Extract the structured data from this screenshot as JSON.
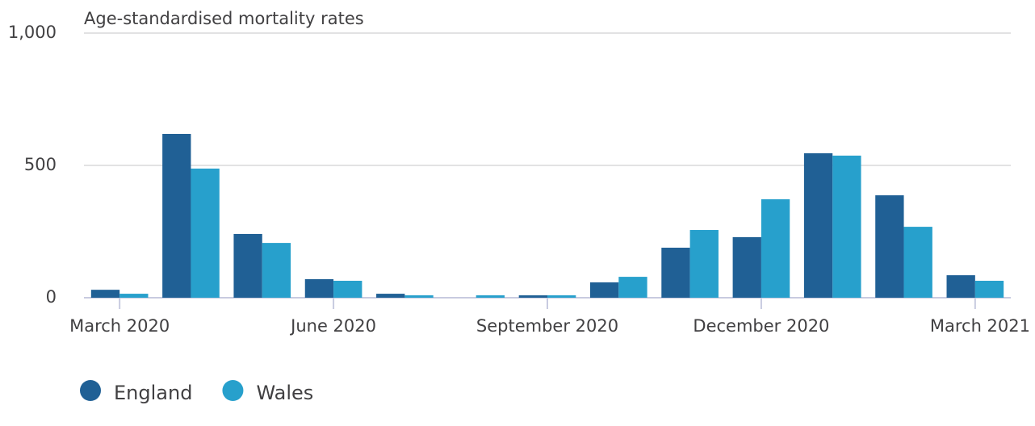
{
  "chart_data": {
    "type": "bar",
    "title": "Age-standardised mortality rates",
    "categories": [
      "March 2020",
      null,
      null,
      "June 2020",
      null,
      null,
      "September 2020",
      null,
      null,
      "December 2020",
      null,
      null,
      "March 2021"
    ],
    "series": [
      {
        "name": "England",
        "color": "#206095",
        "values": [
          30,
          619,
          241,
          70,
          15,
          0,
          9,
          58,
          189,
          229,
          546,
          387,
          85
        ]
      },
      {
        "name": "Wales",
        "color": "#27a0cc",
        "values": [
          15,
          488,
          207,
          64,
          9,
          9,
          9,
          79,
          256,
          372,
          537,
          268,
          64
        ]
      }
    ],
    "ylim": [
      0,
      1000
    ],
    "yticks": [
      0,
      500,
      {
        "value": 1000,
        "label": "1,000"
      }
    ],
    "grid": true,
    "legend": "bottom"
  }
}
